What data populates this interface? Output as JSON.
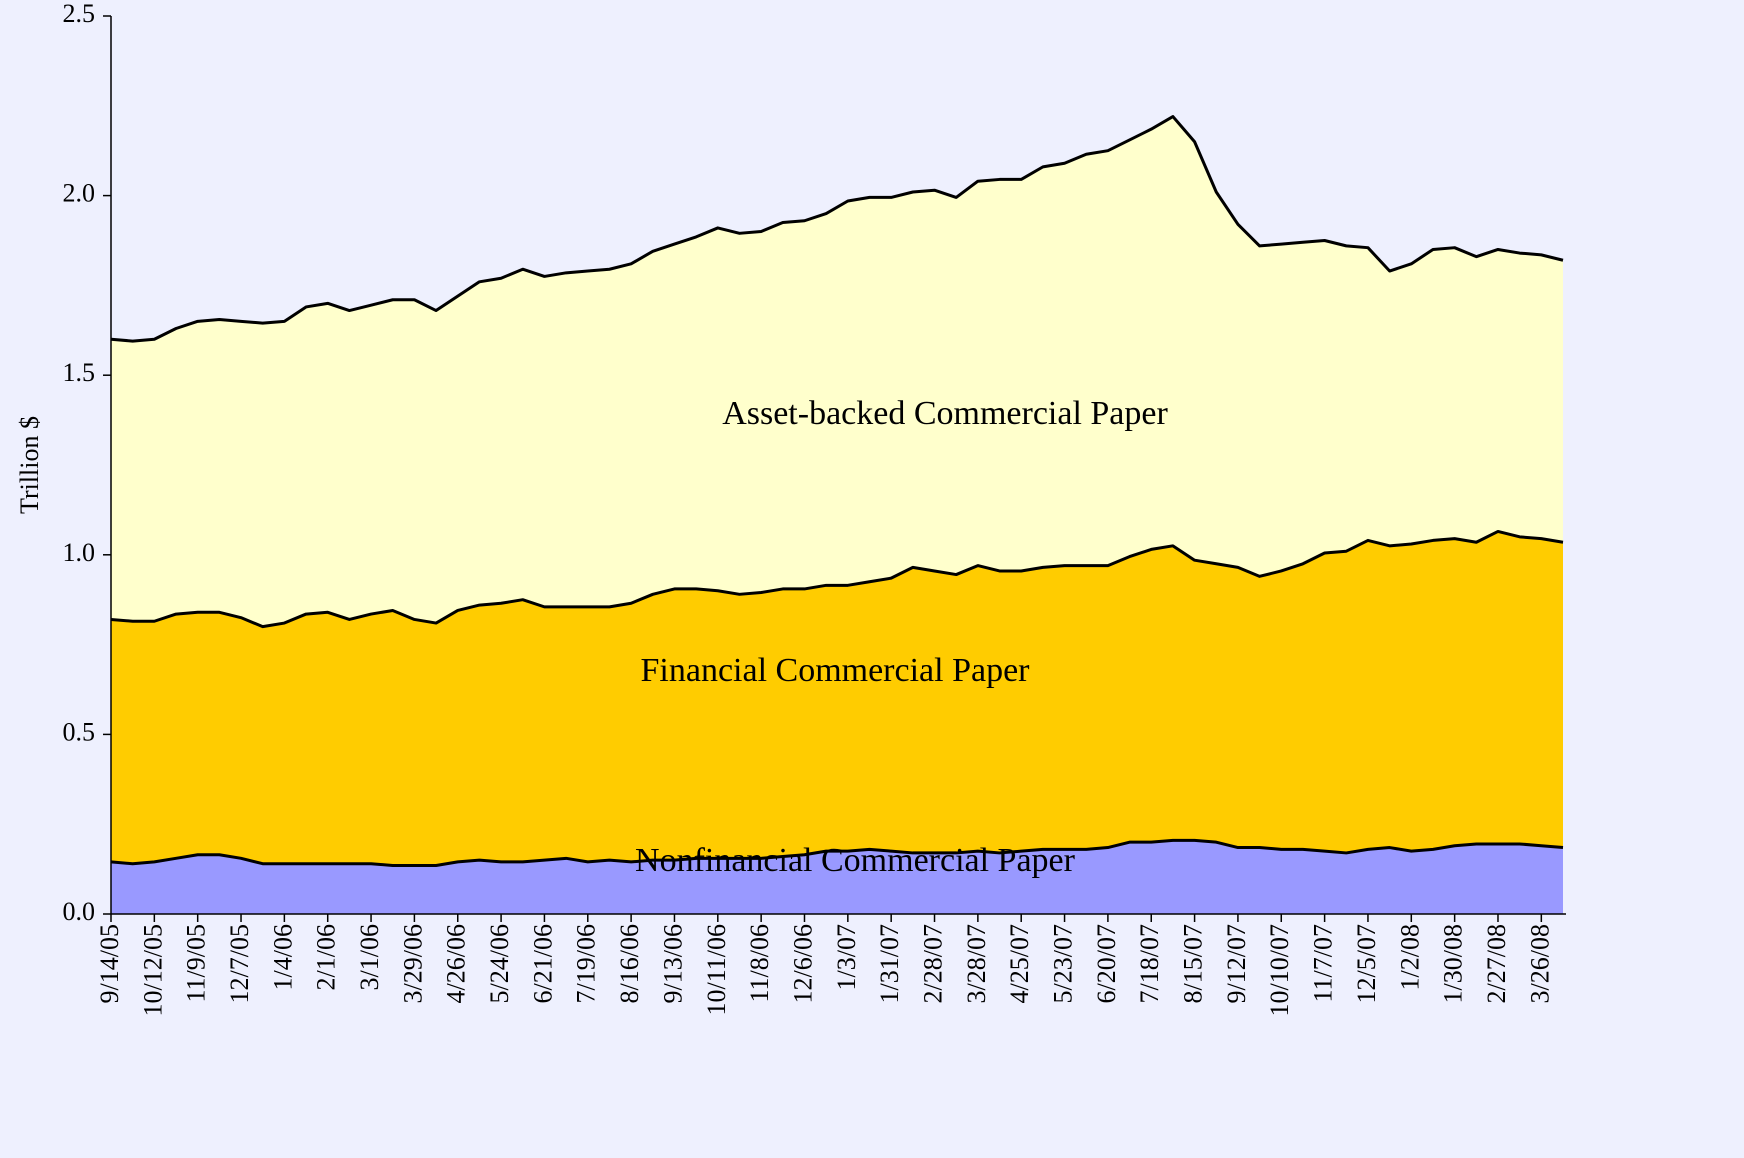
{
  "chart_data": {
    "type": "stacked-area",
    "ylabel": "Trillion $",
    "categories": [
      "9/14/05",
      null,
      "10/12/05",
      null,
      "11/9/05",
      null,
      "12/7/05",
      null,
      "1/4/06",
      null,
      "2/1/06",
      null,
      "3/1/06",
      null,
      "3/29/06",
      null,
      "4/26/06",
      null,
      "5/24/06",
      null,
      "6/21/06",
      null,
      "7/19/06",
      null,
      "8/16/06",
      null,
      "9/13/06",
      null,
      "10/11/06",
      null,
      "11/8/06",
      null,
      "12/6/06",
      null,
      "1/3/07",
      null,
      "1/31/07",
      null,
      "2/28/07",
      null,
      "3/28/07",
      null,
      "4/25/07",
      null,
      "5/23/07",
      null,
      "6/20/07",
      null,
      "7/18/07",
      null,
      "8/15/07",
      null,
      "9/12/07",
      null,
      "10/10/07",
      null,
      "11/7/07",
      null,
      "12/5/07",
      null,
      "1/2/08",
      null,
      "1/30/08",
      null,
      "2/27/08",
      null,
      "3/26/08",
      null
    ],
    "series": [
      {
        "name": "Nonfinancial Commercial Paper",
        "color": "#9999ff",
        "values": [
          0.145,
          0.14,
          0.145,
          0.155,
          0.165,
          0.165,
          0.155,
          0.14,
          0.14,
          0.14,
          0.14,
          0.14,
          0.14,
          0.135,
          0.135,
          0.135,
          0.145,
          0.15,
          0.145,
          0.145,
          0.15,
          0.155,
          0.145,
          0.15,
          0.145,
          0.15,
          0.15,
          0.155,
          0.155,
          0.155,
          0.155,
          0.16,
          0.165,
          0.175,
          0.175,
          0.18,
          0.175,
          0.17,
          0.17,
          0.17,
          0.175,
          0.17,
          0.175,
          0.18,
          0.18,
          0.18,
          0.185,
          0.2,
          0.2,
          0.205,
          0.205,
          0.2,
          0.185,
          0.185,
          0.18,
          0.18,
          0.175,
          0.17,
          0.18,
          0.185,
          0.175,
          0.18,
          0.19,
          0.195,
          0.195,
          0.195,
          0.19,
          0.185
        ]
      },
      {
        "name": "Financial Commercial Paper",
        "color": "#ffcc00",
        "values": [
          0.675,
          0.675,
          0.67,
          0.68,
          0.675,
          0.675,
          0.67,
          0.66,
          0.67,
          0.695,
          0.7,
          0.68,
          0.695,
          0.71,
          0.685,
          0.675,
          0.7,
          0.71,
          0.72,
          0.73,
          0.705,
          0.7,
          0.71,
          0.705,
          0.72,
          0.74,
          0.755,
          0.75,
          0.745,
          0.735,
          0.74,
          0.745,
          0.74,
          0.74,
          0.74,
          0.745,
          0.76,
          0.795,
          0.785,
          0.775,
          0.795,
          0.785,
          0.78,
          0.785,
          0.79,
          0.79,
          0.785,
          0.795,
          0.815,
          0.82,
          0.78,
          0.775,
          0.78,
          0.755,
          0.775,
          0.795,
          0.83,
          0.84,
          0.86,
          0.84,
          0.855,
          0.86,
          0.855,
          0.84,
          0.87,
          0.855,
          0.855,
          0.85
        ]
      },
      {
        "name": "Asset-backed Commercial Paper",
        "color": "#ffffcc",
        "values": [
          0.78,
          0.78,
          0.785,
          0.795,
          0.81,
          0.815,
          0.825,
          0.845,
          0.84,
          0.855,
          0.86,
          0.86,
          0.86,
          0.865,
          0.89,
          0.87,
          0.875,
          0.9,
          0.905,
          0.92,
          0.92,
          0.93,
          0.935,
          0.94,
          0.945,
          0.955,
          0.96,
          0.98,
          1.01,
          1.005,
          1.005,
          1.02,
          1.025,
          1.035,
          1.07,
          1.07,
          1.06,
          1.045,
          1.06,
          1.05,
          1.07,
          1.09,
          1.09,
          1.115,
          1.12,
          1.145,
          1.155,
          1.16,
          1.17,
          1.195,
          1.165,
          1.035,
          0.955,
          0.92,
          0.91,
          0.895,
          0.87,
          0.85,
          0.815,
          0.765,
          0.78,
          0.81,
          0.81,
          0.795,
          0.785,
          0.79,
          0.79,
          0.785
        ]
      }
    ],
    "ylim": [
      0,
      2.5
    ],
    "yticks": [
      {
        "value": 0,
        "label": "0.0"
      },
      0.5,
      {
        "value": 1,
        "label": "1.0"
      },
      1.5,
      {
        "value": 2,
        "label": "2.0"
      },
      2.5
    ],
    "grid": false
  }
}
